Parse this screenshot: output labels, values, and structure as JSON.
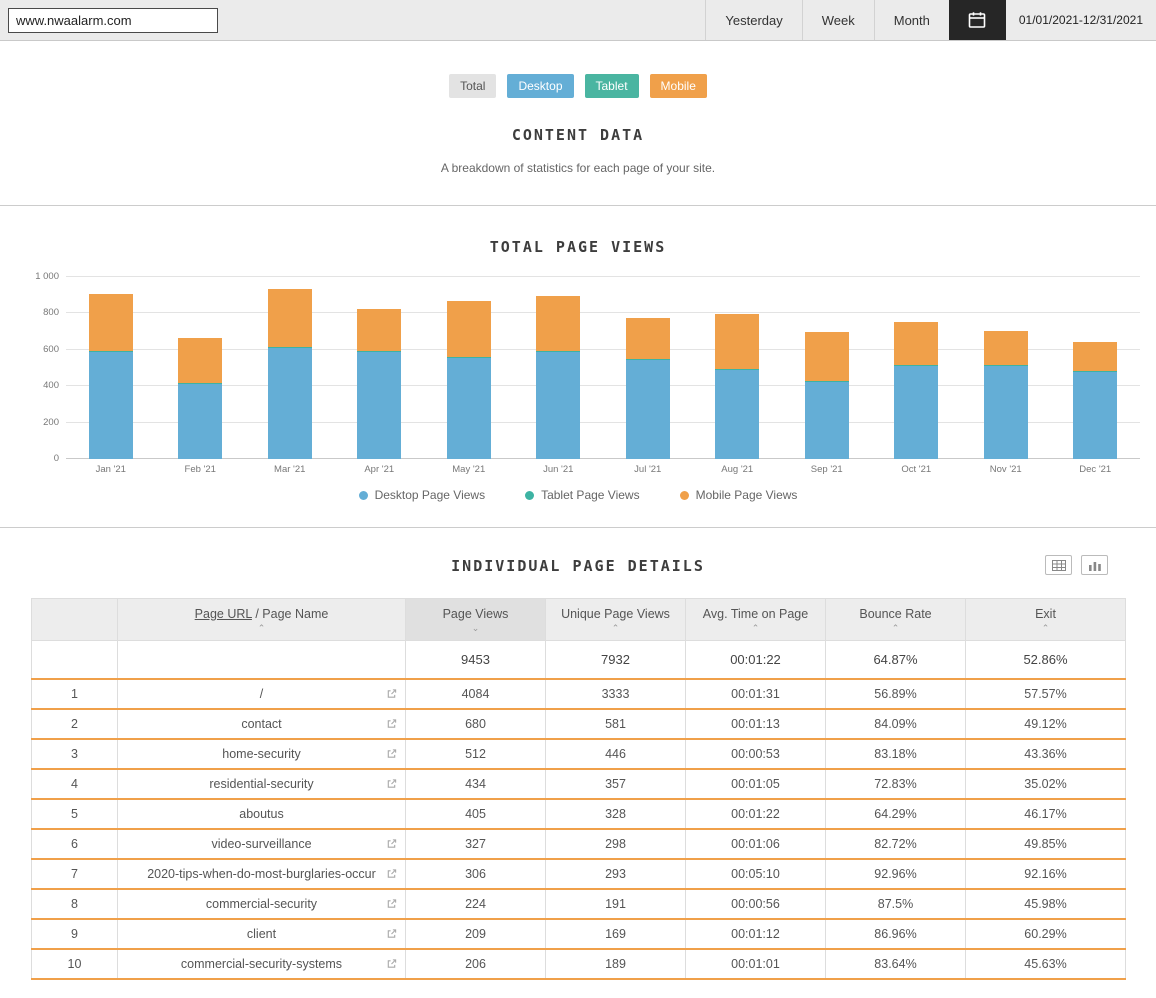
{
  "topbar": {
    "url": "www.nwaalarm.com",
    "range_buttons": {
      "yesterday": "Yesterday",
      "week": "Week",
      "month": "Month"
    },
    "date_range": "01/01/2021-12/31/2021"
  },
  "filters": [
    {
      "label": "Total",
      "color": "#e3e3e3",
      "text_color": "#555555"
    },
    {
      "label": "Desktop",
      "color": "#64aed6",
      "text_color": "#ffffff"
    },
    {
      "label": "Tablet",
      "color": "#4ab5a1",
      "text_color": "#ffffff"
    },
    {
      "label": "Mobile",
      "color": "#f0a04a",
      "text_color": "#ffffff"
    }
  ],
  "content_section": {
    "title": "CONTENT DATA",
    "subtitle": "A breakdown of statistics for each page of your site."
  },
  "chart_section": {
    "title": "TOTAL PAGE VIEWS"
  },
  "chart_data": {
    "type": "bar",
    "stacked": true,
    "title": "TOTAL PAGE VIEWS",
    "categories": [
      "Jan '21",
      "Feb '21",
      "Mar '21",
      "Apr '21",
      "May '21",
      "Jun '21",
      "Jul '21",
      "Aug '21",
      "Sep '21",
      "Oct '21",
      "Nov '21",
      "Dec '21"
    ],
    "series": [
      {
        "name": "Desktop Page Views",
        "color": "#64aed6",
        "values": [
          590,
          410,
          610,
          590,
          555,
          590,
          545,
          490,
          425,
          510,
          510,
          480
        ]
      },
      {
        "name": "Tablet Page Views",
        "color": "#3db3a3",
        "values": [
          6,
          6,
          6,
          6,
          6,
          6,
          6,
          6,
          6,
          6,
          6,
          6
        ]
      },
      {
        "name": "Mobile Page Views",
        "color": "#f0a04a",
        "values": [
          310,
          250,
          320,
          230,
          305,
          300,
          225,
          300,
          265,
          235,
          185,
          155
        ]
      }
    ],
    "ylim": [
      0,
      1000
    ],
    "yticks": [
      "0",
      "200",
      "400",
      "600",
      "800",
      "1 000"
    ],
    "grid": true,
    "legend_position": "bottom"
  },
  "details_section": {
    "title": "INDIVIDUAL PAGE DETAILS"
  },
  "table": {
    "columns": [
      {
        "label": ""
      },
      {
        "label_link": "Page URL",
        "label_rest": " / Page Name",
        "sort": "up"
      },
      {
        "label": "Page Views",
        "sort": "down",
        "active": true
      },
      {
        "label": "Unique Page Views",
        "sort": "up"
      },
      {
        "label": "Avg. Time on Page",
        "sort": "up"
      },
      {
        "label": "Bounce Rate",
        "sort": "up"
      },
      {
        "label": "Exit",
        "sort": "up"
      }
    ],
    "summary": {
      "page_views": "9453",
      "unique_page_views": "7932",
      "avg_time_on_page": "00:01:22",
      "bounce_rate": "64.87%",
      "exit": "52.86%"
    },
    "rows": [
      {
        "rank": "1",
        "page": "/",
        "external_link": true,
        "page_views": "4084",
        "unique_page_views": "3333",
        "avg_time_on_page": "00:01:31",
        "bounce_rate": "56.89%",
        "exit": "57.57%"
      },
      {
        "rank": "2",
        "page": "contact",
        "external_link": true,
        "page_views": "680",
        "unique_page_views": "581",
        "avg_time_on_page": "00:01:13",
        "bounce_rate": "84.09%",
        "exit": "49.12%"
      },
      {
        "rank": "3",
        "page": "home-security",
        "external_link": true,
        "page_views": "512",
        "unique_page_views": "446",
        "avg_time_on_page": "00:00:53",
        "bounce_rate": "83.18%",
        "exit": "43.36%"
      },
      {
        "rank": "4",
        "page": "residential-security",
        "external_link": true,
        "page_views": "434",
        "unique_page_views": "357",
        "avg_time_on_page": "00:01:05",
        "bounce_rate": "72.83%",
        "exit": "35.02%"
      },
      {
        "rank": "5",
        "page": "aboutus",
        "external_link": false,
        "page_views": "405",
        "unique_page_views": "328",
        "avg_time_on_page": "00:01:22",
        "bounce_rate": "64.29%",
        "exit": "46.17%"
      },
      {
        "rank": "6",
        "page": "video-surveillance",
        "external_link": true,
        "page_views": "327",
        "unique_page_views": "298",
        "avg_time_on_page": "00:01:06",
        "bounce_rate": "82.72%",
        "exit": "49.85%"
      },
      {
        "rank": "7",
        "page": "2020-tips-when-do-most-burglaries-occur",
        "external_link": true,
        "page_views": "306",
        "unique_page_views": "293",
        "avg_time_on_page": "00:05:10",
        "bounce_rate": "92.96%",
        "exit": "92.16%"
      },
      {
        "rank": "8",
        "page": "commercial-security",
        "external_link": true,
        "page_views": "224",
        "unique_page_views": "191",
        "avg_time_on_page": "00:00:56",
        "bounce_rate": "87.5%",
        "exit": "45.98%"
      },
      {
        "rank": "9",
        "page": "client",
        "external_link": true,
        "page_views": "209",
        "unique_page_views": "169",
        "avg_time_on_page": "00:01:12",
        "bounce_rate": "86.96%",
        "exit": "60.29%"
      },
      {
        "rank": "10",
        "page": "commercial-security-systems",
        "external_link": true,
        "page_views": "206",
        "unique_page_views": "189",
        "avg_time_on_page": "00:01:01",
        "bounce_rate": "83.64%",
        "exit": "45.63%"
      }
    ]
  }
}
